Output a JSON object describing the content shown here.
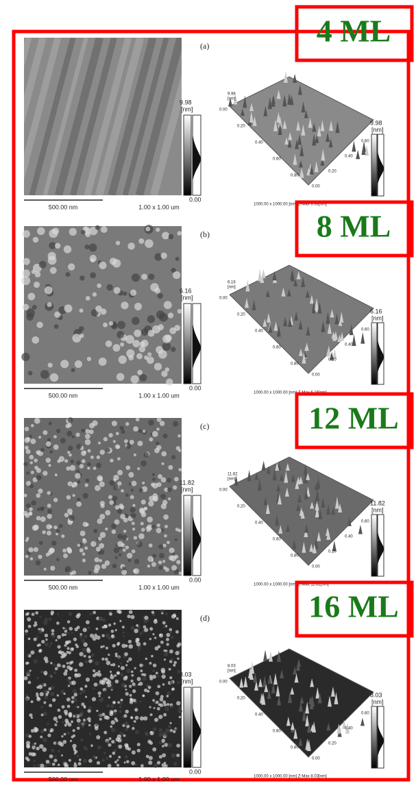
{
  "panels": [
    {
      "ml": "4 ML",
      "label": "(a)",
      "zmax": "9.98",
      "unit": "[nm]",
      "zmin": "0.00",
      "scale_bar": "500.00 nm",
      "size": "1.00 x 1.00 um",
      "axis_left": [
        "0.00",
        "0.20",
        "0.40",
        "0.60",
        "0.80"
      ],
      "axis_right": [
        "0.00",
        "0.20",
        "0.40",
        "0.60"
      ],
      "footer": "1000.00 x 1000.00 [nm]  Z-Max 9.98[nm]"
    },
    {
      "ml": "8 ML",
      "label": "(b)",
      "zmax": "6.16",
      "unit": "[nm]",
      "zmin": "0.00",
      "scale_bar": "500.00 nm",
      "size": "1.00 x 1.00 um",
      "axis_left": [
        "0.00",
        "0.20",
        "0.40",
        "0.60",
        "0.80"
      ],
      "axis_right": [
        "0.00",
        "0.20",
        "0.40",
        "0.60"
      ],
      "footer": "1000.00 x 1000.00 [nm]  Z-Max 6.16[nm]"
    },
    {
      "ml": "12 ML",
      "label": "(c)",
      "zmax": "11.82",
      "unit": "[nm]",
      "zmin": "0.00",
      "scale_bar": "500.00 nm",
      "size": "1.00 x 1.00 um",
      "axis_left": [
        "0.00",
        "0.20",
        "0.40",
        "0.60",
        "0.80"
      ],
      "axis_right": [
        "0.00",
        "0.20",
        "0.40",
        "0.60"
      ],
      "footer": "1000.00 x 1000.00 [nm]  Z-Max 11.82[nm]"
    },
    {
      "ml": "16 ML",
      "label": "(d)",
      "zmax": "8.03",
      "unit": "[nm]",
      "zmin": "0.00",
      "scale_bar": "500.00 nm",
      "size": "1.00 x 1.00 um",
      "axis_left": [
        "0.00",
        "0.20",
        "0.40",
        "0.60",
        "0.80"
      ],
      "axis_right": [
        "0.00",
        "0.20",
        "0.40",
        "0.60"
      ],
      "footer": "1000.00 x 1000.00 [nm]  Z-Max 8.03[nm]"
    }
  ]
}
